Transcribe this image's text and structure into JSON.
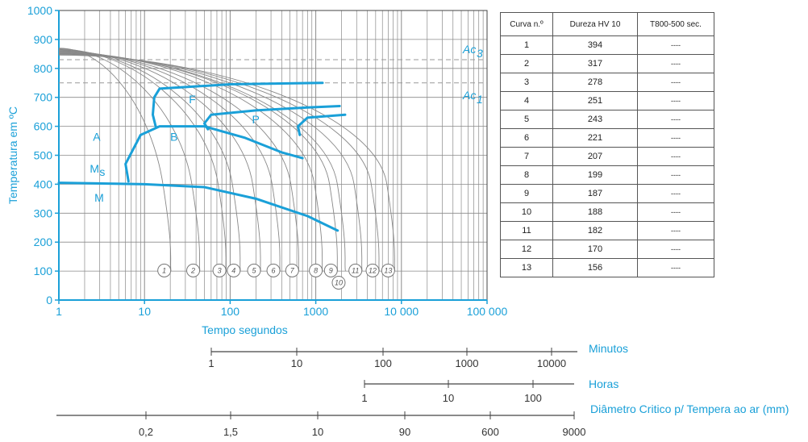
{
  "chart_data": {
    "type": "line",
    "title": "",
    "xlabel": "Tempo segundos",
    "ylabel": "Temperatura em ºC",
    "x_scale": "log",
    "xlim": [
      1,
      100000
    ],
    "ylim": [
      0,
      1000
    ],
    "x_ticks": [
      {
        "v": 1,
        "label": "1"
      },
      {
        "v": 10,
        "label": "10"
      },
      {
        "v": 100,
        "label": "100"
      },
      {
        "v": 1000,
        "label": "1000"
      },
      {
        "v": 10000,
        "label": "10 000"
      },
      {
        "v": 100000,
        "label": "100 000"
      }
    ],
    "y_ticks": [
      "0",
      "100",
      "200",
      "300",
      "400",
      "500",
      "600",
      "700",
      "800",
      "900",
      "1000"
    ],
    "reference_lines": [
      {
        "name": "Ac3",
        "label_main": "Ac",
        "label_sub": "3",
        "y": 830
      },
      {
        "name": "Ac1",
        "label_main": "Ac",
        "label_sub": "1",
        "y": 750
      }
    ],
    "region_labels": [
      {
        "text": "A",
        "x": 2.5,
        "y": 550
      },
      {
        "text": "B",
        "x": 20,
        "y": 550
      },
      {
        "text": "F",
        "x": 33,
        "y": 680
      },
      {
        "text": "P",
        "x": 180,
        "y": 610
      },
      {
        "text": "M",
        "x": 2.6,
        "y": 340
      },
      {
        "text": "M",
        "sub": "s",
        "x": 2.3,
        "y": 440
      }
    ],
    "transformation_lines": [
      {
        "name": "ferrite-start",
        "points": [
          [
            13.5,
            600
          ],
          [
            12.5,
            640
          ],
          [
            13,
            700
          ],
          [
            15,
            730
          ],
          [
            100,
            745
          ],
          [
            1200,
            750
          ]
        ]
      },
      {
        "name": "pearlite-start",
        "points": [
          [
            55,
            590
          ],
          [
            50,
            610
          ],
          [
            60,
            640
          ],
          [
            200,
            655
          ],
          [
            800,
            665
          ],
          [
            1900,
            670
          ]
        ]
      },
      {
        "name": "pearlite-start-2",
        "points": [
          [
            650,
            570
          ],
          [
            620,
            600
          ],
          [
            800,
            630
          ],
          [
            2200,
            640
          ]
        ]
      },
      {
        "name": "bainite-start",
        "points": [
          [
            6.5,
            410
          ],
          [
            6,
            470
          ],
          [
            9,
            570
          ],
          [
            15,
            600
          ],
          [
            50,
            600
          ],
          [
            150,
            560
          ],
          [
            400,
            510
          ],
          [
            700,
            490
          ]
        ]
      },
      {
        "name": "martensite-start",
        "points": [
          [
            1,
            405
          ],
          [
            10,
            400
          ],
          [
            50,
            390
          ],
          [
            200,
            350
          ],
          [
            800,
            290
          ],
          [
            1800,
            240
          ]
        ]
      }
    ],
    "cooling_curves": [
      {
        "id": "1",
        "label_x": 17
      },
      {
        "id": "2",
        "label_x": 37
      },
      {
        "id": "3",
        "label_x": 75
      },
      {
        "id": "4",
        "label_x": 110
      },
      {
        "id": "5",
        "label_x": 190
      },
      {
        "id": "6",
        "label_x": 320
      },
      {
        "id": "7",
        "label_x": 530
      },
      {
        "id": "8",
        "label_x": 1000
      },
      {
        "id": "9",
        "label_x": 1500
      },
      {
        "id": "10",
        "label_x": 1850
      },
      {
        "id": "11",
        "label_x": 2900
      },
      {
        "id": "12",
        "label_x": 4600
      },
      {
        "id": "13",
        "label_x": 7000
      }
    ]
  },
  "table": {
    "headers": [
      "Curva n.º",
      "Dureza HV 10",
      "T800-500 sec."
    ],
    "rows": [
      [
        "1",
        "394",
        "----"
      ],
      [
        "2",
        "317",
        "----"
      ],
      [
        "3",
        "278",
        "----"
      ],
      [
        "4",
        "251",
        "----"
      ],
      [
        "5",
        "243",
        "----"
      ],
      [
        "6",
        "221",
        "----"
      ],
      [
        "7",
        "207",
        "----"
      ],
      [
        "8",
        "199",
        "----"
      ],
      [
        "9",
        "187",
        "----"
      ],
      [
        "10",
        "188",
        "----"
      ],
      [
        "11",
        "182",
        "----"
      ],
      [
        "12",
        "170",
        "----"
      ],
      [
        "13",
        "156",
        "----"
      ]
    ]
  },
  "secondary_scales": [
    {
      "title": "Minutos",
      "ticks": [
        "1",
        "10",
        "100",
        "1000",
        "10000"
      ]
    },
    {
      "title": "Horas",
      "ticks": [
        "1",
        "10",
        "100"
      ]
    },
    {
      "title": "Diâmetro Critico p/ Tempera ao ar (mm)",
      "ticks": [
        "0,2",
        "1,5",
        "10",
        "90",
        "600",
        "9000"
      ]
    }
  ],
  "colors": {
    "accent": "#1aa0d8",
    "grid": "#8a8a8a",
    "curve": "#888888",
    "dashed": "#999999"
  }
}
